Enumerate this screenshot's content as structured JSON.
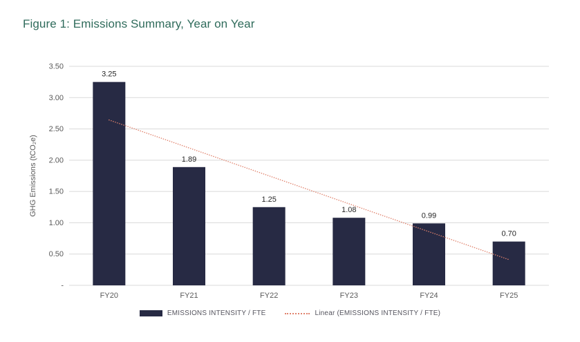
{
  "figure_title": "Figure 1: Emissions Summary, Year on Year",
  "chart_data": {
    "type": "bar",
    "title": "Figure 1: Emissions Summary, Year on Year",
    "categories": [
      "FY20",
      "FY21",
      "FY22",
      "FY23",
      "FY24",
      "FY25"
    ],
    "values": [
      3.25,
      1.89,
      1.25,
      1.08,
      0.99,
      0.7
    ],
    "data_labels": [
      "3.25",
      "1.89",
      "1.25",
      "1.08",
      "0.99",
      "0.70"
    ],
    "series_name": "EMISSIONS INTENSITY / FTE",
    "trendline": {
      "type": "linear",
      "label": "Linear (EMISSIONS INTENSITY / FTE)"
    },
    "xlabel": "",
    "ylabel": "GHG Emissions (tCO₂e)",
    "ylim": [
      0,
      3.5
    ],
    "y_ticks": [
      {
        "value": 3.5,
        "label": "3.50"
      },
      {
        "value": 3.0,
        "label": "3.00"
      },
      {
        "value": 2.5,
        "label": "2.50"
      },
      {
        "value": 2.0,
        "label": "2.00"
      },
      {
        "value": 1.5,
        "label": "1.50"
      },
      {
        "value": 1.0,
        "label": "1.00"
      },
      {
        "value": 0.5,
        "label": "0.50"
      },
      {
        "value": 0.0,
        "label": "-"
      }
    ],
    "grid": true,
    "legend_position": "bottom",
    "colors": {
      "bar": "#272a44",
      "trendline": "#e0816b",
      "gridline": "#d9d9d9",
      "axis_text": "#595959",
      "data_label": "#262626",
      "title": "#2f6b5b"
    }
  }
}
